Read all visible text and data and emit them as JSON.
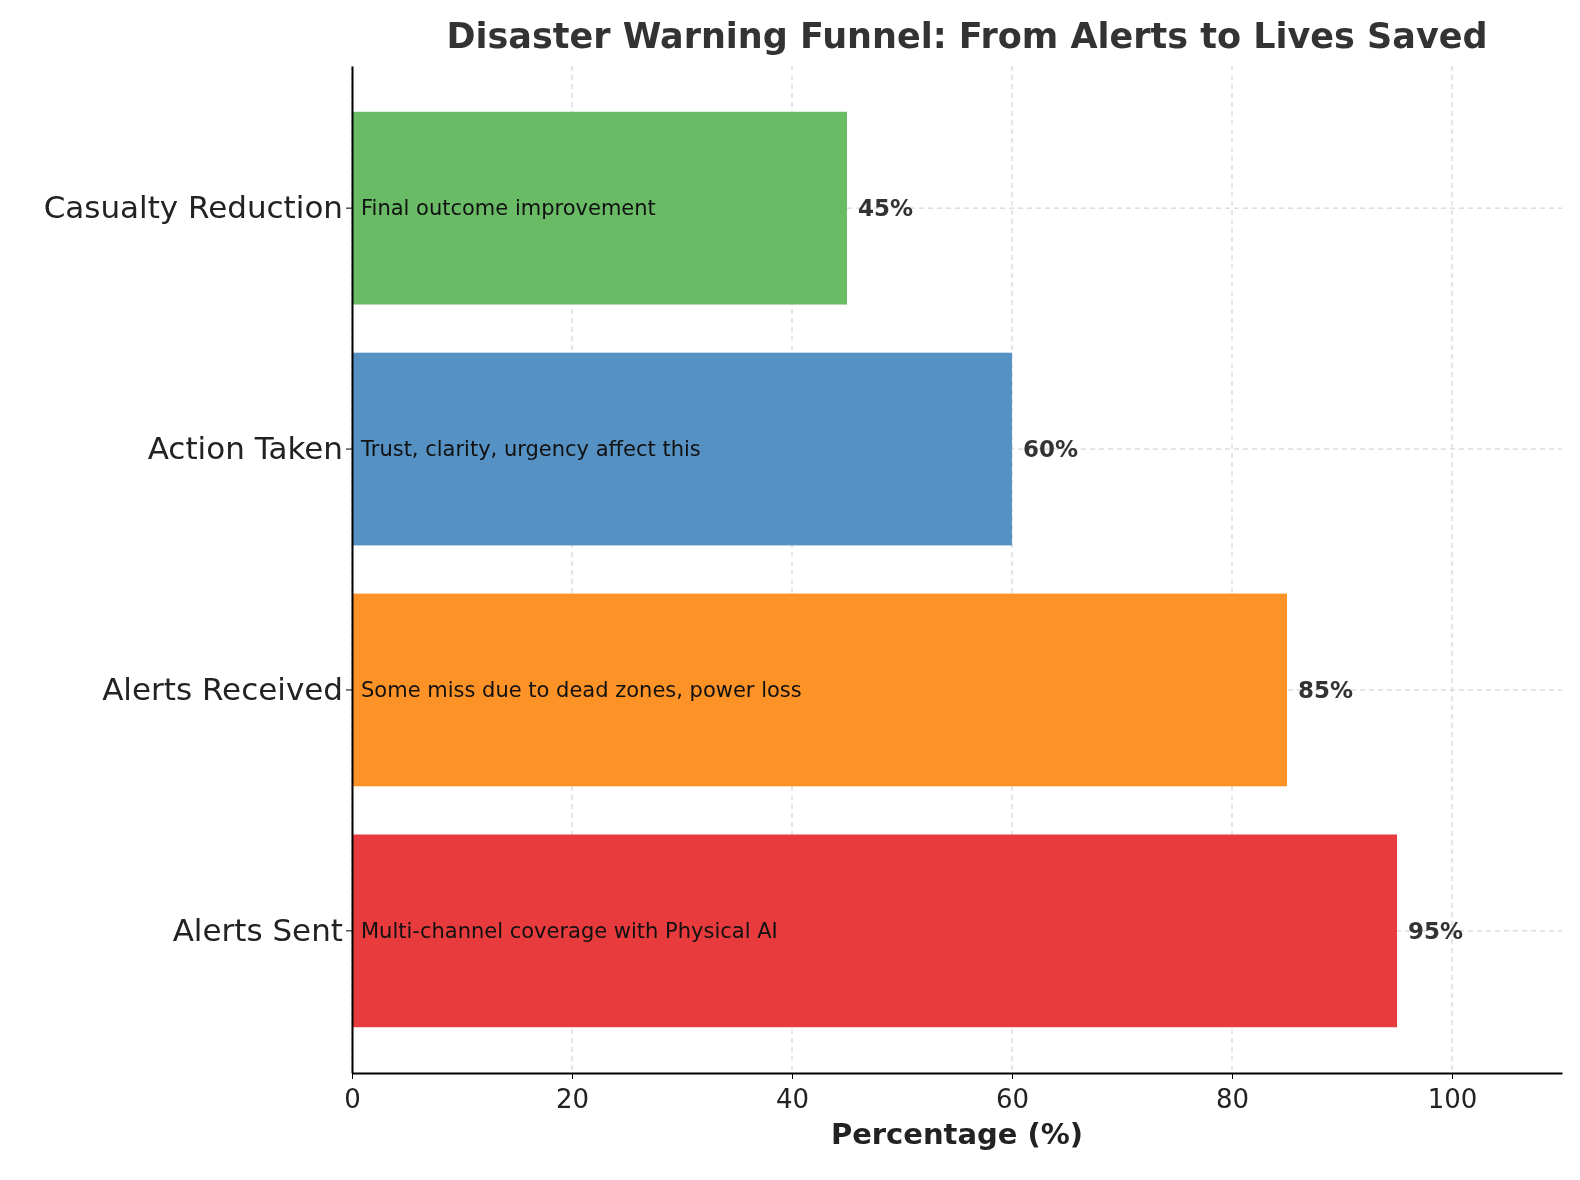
{
  "chart_data": {
    "type": "bar",
    "orientation": "horizontal",
    "title": "Disaster Warning Funnel: From Alerts to Lives Saved",
    "xlabel": "Percentage (%)",
    "categories": [
      "Casualty Reduction",
      "Action Taken",
      "Alerts Received",
      "Alerts Sent"
    ],
    "values": [
      45,
      60,
      85,
      95
    ],
    "colors": [
      "#69bc65",
      "#5591c3",
      "#fd9227",
      "#e73b3d"
    ],
    "value_labels": [
      "45%",
      "60%",
      "85%",
      "95%"
    ],
    "xlim": [
      0,
      110
    ],
    "xticks": [
      0,
      20,
      40,
      60,
      80,
      100
    ],
    "grid": true,
    "line_style": "dashed",
    "annotations": [
      "Final outcome improvement",
      "Trust, clarity, urgency affect this",
      "Some miss due to dead zones, power loss",
      "Multi-channel coverage with Physical AI"
    ]
  }
}
